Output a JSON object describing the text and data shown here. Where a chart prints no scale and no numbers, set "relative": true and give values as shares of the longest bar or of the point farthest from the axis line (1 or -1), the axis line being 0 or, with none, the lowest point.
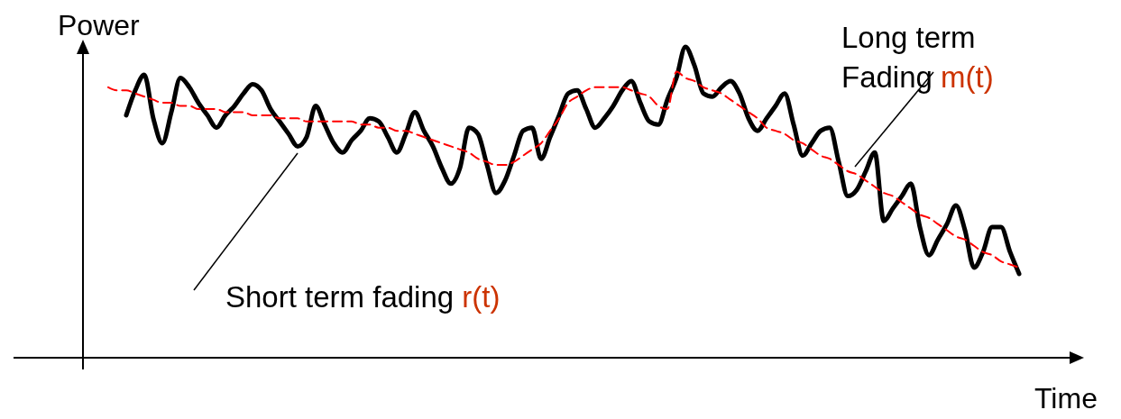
{
  "chart_data": {
    "type": "line",
    "relative": true,
    "xlabel": "Time",
    "ylabel": "Power",
    "marker": "none",
    "annotations": [
      "Short term fading r(t)",
      "Long term Fading m(t)"
    ],
    "categories": [
      null,
      null,
      null,
      null,
      null,
      null,
      null,
      null,
      null,
      null,
      null,
      null,
      null,
      null,
      null,
      null,
      null,
      null,
      null,
      null,
      null,
      null,
      null,
      null,
      null,
      null,
      null,
      null,
      null,
      null,
      null,
      null,
      null,
      null,
      null,
      null,
      null,
      null,
      null,
      null,
      null,
      null,
      null,
      null,
      null,
      null,
      null,
      null,
      null,
      null,
      null,
      null,
      null,
      null,
      null,
      null,
      null,
      null,
      null,
      null,
      null,
      null,
      null,
      null,
      null,
      null,
      null,
      null,
      null,
      null,
      null,
      null,
      null,
      null,
      null,
      null,
      null,
      null,
      null,
      null,
      null,
      null,
      null,
      null,
      null,
      null,
      null,
      null,
      null,
      null,
      null,
      null,
      null,
      null,
      null,
      null,
      null,
      null,
      null,
      null,
      null,
      null
    ],
    "series": [
      {
        "color": "#000000",
        "line_style": "solid",
        "values": [
          null,
          null,
          0.78,
          0.86,
          0.91,
          0.77,
          0.69,
          0.79,
          0.9,
          0.87,
          0.82,
          0.78,
          0.74,
          0.78,
          0.81,
          0.85,
          0.88,
          0.86,
          0.8,
          0.76,
          0.72,
          0.68,
          0.71,
          0.81,
          0.75,
          0.69,
          0.66,
          0.7,
          0.73,
          0.77,
          0.76,
          0.71,
          0.66,
          0.72,
          0.79,
          0.73,
          0.68,
          0.61,
          0.56,
          0.61,
          0.74,
          0.72,
          0.62,
          0.53,
          0.57,
          0.65,
          0.73,
          0.74,
          0.64,
          0.71,
          0.78,
          0.85,
          0.86,
          0.8,
          0.74,
          0.77,
          0.81,
          0.86,
          0.89,
          0.82,
          0.76,
          0.75,
          0.83,
          0.9,
          1.0,
          0.94,
          0.85,
          0.84,
          0.87,
          0.89,
          0.85,
          0.77,
          0.73,
          0.77,
          0.81,
          0.85,
          0.75,
          0.65,
          0.69,
          0.73,
          0.74,
          0.63,
          0.52,
          0.54,
          0.6,
          0.66,
          0.44,
          0.48,
          0.52,
          0.56,
          0.42,
          0.33,
          0.38,
          0.43,
          0.49,
          0.41,
          0.29,
          0.34,
          0.42,
          0.42,
          0.34,
          0.27
        ]
      },
      {
        "color": "#ff0000",
        "line_style": "dashed",
        "values": [
          0.87,
          0.86,
          0.86,
          0.85,
          0.84,
          0.83,
          0.82,
          0.82,
          0.81,
          0.81,
          0.8,
          0.8,
          0.8,
          0.79,
          0.79,
          0.79,
          0.78,
          0.78,
          0.78,
          0.77,
          0.77,
          0.77,
          0.76,
          0.76,
          0.76,
          0.76,
          0.76,
          0.76,
          0.75,
          0.75,
          0.74,
          0.74,
          0.73,
          0.73,
          0.72,
          0.71,
          0.7,
          0.69,
          0.68,
          0.67,
          0.66,
          0.64,
          0.63,
          0.62,
          0.62,
          0.63,
          0.65,
          0.67,
          0.69,
          0.73,
          0.77,
          0.82,
          0.84,
          0.86,
          0.87,
          0.87,
          0.87,
          0.87,
          0.86,
          0.85,
          0.84,
          0.81,
          0.8,
          0.92,
          0.9,
          0.89,
          0.87,
          0.86,
          0.85,
          0.83,
          0.81,
          0.79,
          0.77,
          0.74,
          0.73,
          0.72,
          0.7,
          0.69,
          0.67,
          0.65,
          0.64,
          0.62,
          0.6,
          0.59,
          0.57,
          0.55,
          0.53,
          0.52,
          0.5,
          0.48,
          0.46,
          0.45,
          0.43,
          0.41,
          0.39,
          0.38,
          0.36,
          0.34,
          0.33,
          0.31,
          0.3,
          0.29
        ]
      }
    ]
  }
}
